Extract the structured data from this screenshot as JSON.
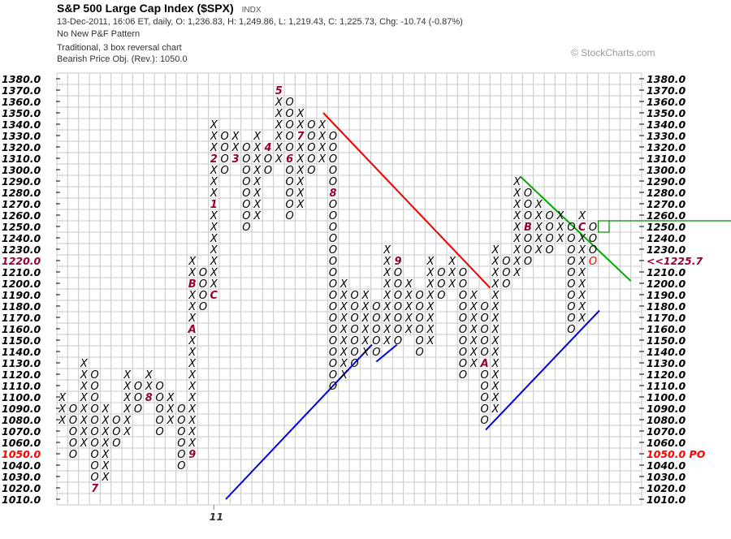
{
  "header": {
    "title": "S&P 500 Large Cap Index ($SPX)",
    "exchange": "INDX",
    "quote_line": "13-Dec-2011, 16:06 ET, daily, O: 1,236.83, H: 1,249.86, L: 1,219.43, C: 1,225.73, Chg: -10.74 (-0.87%)",
    "pattern": "No New P&F Pattern",
    "chart_settings": "Traditional, 3 box reversal chart",
    "price_objective": "Bearish Price Obj. (Rev.): 1050.0",
    "watermark": "© StockCharts.com"
  },
  "chart_data": {
    "type": "point-and-figure",
    "box_size": 10,
    "reversal": 3,
    "ylim": [
      1010,
      1380
    ],
    "grid": true,
    "y_ticks": [
      "1380.0",
      "1370.0",
      "1360.0",
      "1350.0",
      "1340.0",
      "1330.0",
      "1320.0",
      "1310.0",
      "1300.0",
      "1290.0",
      "1280.0",
      "1270.0",
      "1260.0",
      "1250.0",
      "1240.0",
      "1230.0",
      "1220.0",
      "1210.0",
      "1200.0",
      "1190.0",
      "1180.0",
      "1170.0",
      "1160.0",
      "1150.0",
      "1140.0",
      "1130.0",
      "1120.0",
      "1110.0",
      "1100.0",
      "1090.0",
      "1080.0",
      "1070.0",
      "1060.0",
      "1050.0",
      "1040.0",
      "1030.0",
      "1020.0",
      "1010.0"
    ],
    "left_highlights": {
      "1220.0": "#990033",
      "1050.0": "#ff0000"
    },
    "right_labels_override": {
      "1220.0": "<<1225.7",
      "1050.0": "1050.0 PO"
    },
    "right_highlight_colors": {
      "1220.0": "#990033",
      "1050.0": "#ff0000"
    },
    "x_labels": [
      {
        "column": 14,
        "label": "11"
      }
    ],
    "columns": [
      {
        "t": "X",
        "low": 1080,
        "high": 1100
      },
      {
        "t": "O",
        "low": 1050,
        "high": 1090
      },
      {
        "t": "X",
        "low": 1060,
        "high": 1130
      },
      {
        "t": "O",
        "low": 1020,
        "high": 1120,
        "months": {
          "1020": "7"
        }
      },
      {
        "t": "X",
        "low": 1030,
        "high": 1090
      },
      {
        "t": "O",
        "low": 1060,
        "high": 1080
      },
      {
        "t": "X",
        "low": 1070,
        "high": 1120
      },
      {
        "t": "O",
        "low": 1090,
        "high": 1110
      },
      {
        "t": "X",
        "low": 1100,
        "high": 1120,
        "months": {
          "1100": "8"
        }
      },
      {
        "t": "O",
        "low": 1070,
        "high": 1110
      },
      {
        "t": "X",
        "low": 1080,
        "high": 1100
      },
      {
        "t": "O",
        "low": 1040,
        "high": 1090
      },
      {
        "t": "X",
        "low": 1050,
        "high": 1220,
        "months": {
          "1050": "9",
          "1160": "A",
          "1200": "B"
        }
      },
      {
        "t": "O",
        "low": 1180,
        "high": 1210
      },
      {
        "t": "X",
        "low": 1190,
        "high": 1340,
        "months": {
          "1190": "C",
          "1270": "1",
          "1310": "2"
        }
      },
      {
        "t": "O",
        "low": 1300,
        "high": 1330
      },
      {
        "t": "X",
        "low": 1310,
        "high": 1330,
        "months": {
          "1310": "3"
        }
      },
      {
        "t": "O",
        "low": 1250,
        "high": 1320
      },
      {
        "t": "X",
        "low": 1260,
        "high": 1330
      },
      {
        "t": "O",
        "low": 1300,
        "high": 1320,
        "months": {
          "1320": "4"
        }
      },
      {
        "t": "X",
        "low": 1310,
        "high": 1370,
        "months": {
          "1370": "5"
        }
      },
      {
        "t": "O",
        "low": 1260,
        "high": 1360,
        "months": {
          "1310": "6"
        }
      },
      {
        "t": "X",
        "low": 1270,
        "high": 1350,
        "months": {
          "1330": "7"
        }
      },
      {
        "t": "O",
        "low": 1300,
        "high": 1340
      },
      {
        "t": "X",
        "low": 1310,
        "high": 1340
      },
      {
        "t": "O",
        "low": 1110,
        "high": 1330,
        "months": {
          "1280": "8"
        }
      },
      {
        "t": "X",
        "low": 1120,
        "high": 1200
      },
      {
        "t": "O",
        "low": 1130,
        "high": 1190
      },
      {
        "t": "X",
        "low": 1140,
        "high": 1190
      },
      {
        "t": "O",
        "low": 1140,
        "high": 1180
      },
      {
        "t": "X",
        "low": 1150,
        "high": 1230
      },
      {
        "t": "O",
        "low": 1150,
        "high": 1220,
        "months": {
          "1220": "9"
        }
      },
      {
        "t": "X",
        "low": 1160,
        "high": 1200
      },
      {
        "t": "O",
        "low": 1140,
        "high": 1190
      },
      {
        "t": "X",
        "low": 1150,
        "high": 1220
      },
      {
        "t": "O",
        "low": 1190,
        "high": 1210
      },
      {
        "t": "X",
        "low": 1200,
        "high": 1220
      },
      {
        "t": "O",
        "low": 1120,
        "high": 1210
      },
      {
        "t": "X",
        "low": 1130,
        "high": 1190
      },
      {
        "t": "O",
        "low": 1080,
        "high": 1180,
        "months": {
          "1130": "A"
        }
      },
      {
        "t": "X",
        "low": 1090,
        "high": 1230
      },
      {
        "t": "O",
        "low": 1200,
        "high": 1220
      },
      {
        "t": "X",
        "low": 1210,
        "high": 1290
      },
      {
        "t": "O",
        "low": 1220,
        "high": 1280,
        "months": {
          "1250": "B"
        }
      },
      {
        "t": "X",
        "low": 1230,
        "high": 1270
      },
      {
        "t": "O",
        "low": 1230,
        "high": 1260
      },
      {
        "t": "X",
        "low": 1240,
        "high": 1260
      },
      {
        "t": "O",
        "low": 1160,
        "high": 1250
      },
      {
        "t": "X",
        "low": 1170,
        "high": 1260,
        "months": {
          "1250": "C"
        }
      },
      {
        "t": "O",
        "low": 1220,
        "high": 1250,
        "last_box_color": "#ee0000"
      }
    ],
    "trendlines": [
      {
        "kind": "bearish resistance",
        "color": "#ee0000",
        "from": [
          24.6,
          1350
        ],
        "to": [
          40,
          1196
        ]
      },
      {
        "kind": "bullish support",
        "color": "#0000dd",
        "from": [
          15.6,
          1010
        ],
        "to": [
          29.1,
          1146
        ]
      },
      {
        "kind": "bullish support",
        "color": "#0000dd",
        "from": [
          29.5,
          1131
        ],
        "to": [
          31.4,
          1146
        ]
      },
      {
        "kind": "bullish support",
        "color": "#0000dd",
        "from": [
          39.6,
          1071
        ],
        "to": [
          50.1,
          1176
        ]
      },
      {
        "kind": "bearish resistance",
        "color": "#00aa00",
        "from": [
          42.8,
          1294
        ],
        "to": [
          53,
          1202
        ]
      }
    ],
    "price_box": {
      "price": 1250,
      "color": "#008800"
    },
    "colors": {
      "x": "#000000",
      "o": "#000000",
      "month": "#990033",
      "grid": "#c8c8c8"
    }
  }
}
